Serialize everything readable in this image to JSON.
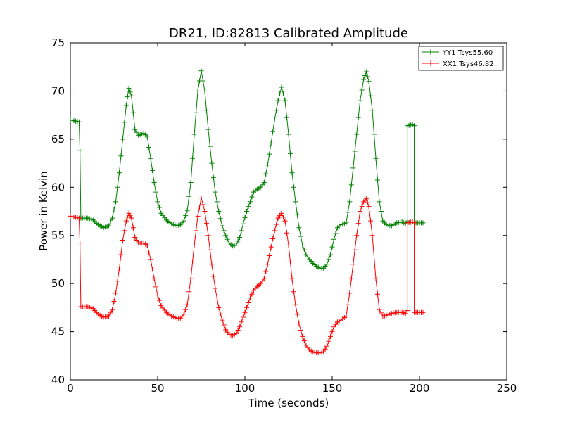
{
  "chart_data": {
    "type": "line",
    "title": "DR21, ID:82813 Calibrated Amplitude",
    "xlabel": "Time (seconds)",
    "ylabel": "Power in Kelvin",
    "xlim": [
      0,
      250
    ],
    "ylim": [
      40,
      75
    ],
    "xticks": [
      0,
      50,
      100,
      150,
      200,
      250
    ],
    "yticks": [
      40,
      45,
      50,
      55,
      60,
      65,
      70,
      75
    ],
    "grid": false,
    "legend_position": "top-right",
    "marker": "+",
    "series": [
      {
        "name": "YY1 Tsys55.60",
        "color": "#008000",
        "points": [
          [
            0,
            67.0
          ],
          [
            5,
            66.8
          ],
          [
            5.5,
            63.8
          ],
          [
            6,
            56.8
          ],
          [
            10,
            56.8
          ],
          [
            13,
            56.6
          ],
          [
            16,
            56.1
          ],
          [
            19,
            55.8
          ],
          [
            22,
            56.0
          ],
          [
            24,
            56.8
          ],
          [
            26,
            58.5
          ],
          [
            28,
            61.5
          ],
          [
            30,
            65.0
          ],
          [
            32,
            68.5
          ],
          [
            33.5,
            70.3
          ],
          [
            35,
            69.5
          ],
          [
            37,
            66.0
          ],
          [
            39,
            65.4
          ],
          [
            42,
            65.6
          ],
          [
            44,
            65.3
          ],
          [
            46,
            63.0
          ],
          [
            48,
            60.5
          ],
          [
            50,
            58.5
          ],
          [
            52,
            57.3
          ],
          [
            55,
            56.6
          ],
          [
            58,
            56.2
          ],
          [
            61,
            56.0
          ],
          [
            63,
            56.1
          ],
          [
            65,
            56.5
          ],
          [
            67,
            57.6
          ],
          [
            69,
            60.5
          ],
          [
            71,
            65.5
          ],
          [
            73,
            70.0
          ],
          [
            75,
            72.1
          ],
          [
            77,
            70.0
          ],
          [
            79,
            66.0
          ],
          [
            81,
            62.5
          ],
          [
            83,
            59.5
          ],
          [
            85,
            57.5
          ],
          [
            87,
            56.0
          ],
          [
            89,
            55.0
          ],
          [
            91,
            54.2
          ],
          [
            93,
            53.9
          ],
          [
            95,
            54.0
          ],
          [
            97,
            54.8
          ],
          [
            99,
            56.2
          ],
          [
            101,
            57.5
          ],
          [
            103,
            58.5
          ],
          [
            105,
            59.5
          ],
          [
            107,
            59.8
          ],
          [
            109,
            60.0
          ],
          [
            111,
            60.5
          ],
          [
            113,
            62.3
          ],
          [
            115,
            64.6
          ],
          [
            117,
            67.0
          ],
          [
            119,
            69.0
          ],
          [
            121,
            70.4
          ],
          [
            123,
            69.0
          ],
          [
            125,
            65.5
          ],
          [
            127,
            61.5
          ],
          [
            129,
            58.5
          ],
          [
            131,
            55.8
          ],
          [
            133,
            54.0
          ],
          [
            135,
            53.0
          ],
          [
            137,
            52.5
          ],
          [
            139,
            52.1
          ],
          [
            141,
            51.8
          ],
          [
            143,
            51.6
          ],
          [
            145,
            51.6
          ],
          [
            147,
            52.0
          ],
          [
            149,
            53.0
          ],
          [
            151,
            54.6
          ],
          [
            153,
            55.8
          ],
          [
            155,
            56.1
          ],
          [
            158,
            56.3
          ],
          [
            160,
            58.5
          ],
          [
            162,
            62.0
          ],
          [
            164,
            65.5
          ],
          [
            166,
            69.0
          ],
          [
            168,
            71.2
          ],
          [
            169.5,
            72.0
          ],
          [
            171,
            71.0
          ],
          [
            173,
            68.0
          ],
          [
            175,
            63.0
          ],
          [
            177,
            58.5
          ],
          [
            179,
            56.5
          ],
          [
            181,
            56.1
          ],
          [
            184,
            56.0
          ],
          [
            187,
            56.3
          ],
          [
            190,
            56.4
          ],
          [
            192,
            56.2
          ],
          [
            193,
            56.5
          ],
          [
            193,
            66.4
          ],
          [
            196,
            66.5
          ],
          [
            197,
            66.4
          ],
          [
            197,
            56.3
          ],
          [
            202,
            56.3
          ]
        ]
      },
      {
        "name": "XX1 Tsys46.82",
        "color": "#ff0000",
        "points": [
          [
            0,
            57.0
          ],
          [
            5,
            56.8
          ],
          [
            5.5,
            54.2
          ],
          [
            6,
            47.6
          ],
          [
            10,
            47.6
          ],
          [
            13,
            47.4
          ],
          [
            16,
            46.8
          ],
          [
            19,
            46.5
          ],
          [
            22,
            46.6
          ],
          [
            24,
            47.3
          ],
          [
            26,
            49.0
          ],
          [
            28,
            51.5
          ],
          [
            30,
            54.5
          ],
          [
            32,
            56.5
          ],
          [
            33.5,
            57.3
          ],
          [
            35,
            56.8
          ],
          [
            37,
            54.8
          ],
          [
            39,
            54.2
          ],
          [
            42,
            54.2
          ],
          [
            44,
            54.0
          ],
          [
            46,
            52.5
          ],
          [
            48,
            50.5
          ],
          [
            50,
            48.8
          ],
          [
            52,
            47.7
          ],
          [
            55,
            47.0
          ],
          [
            58,
            46.6
          ],
          [
            61,
            46.4
          ],
          [
            63,
            46.4
          ],
          [
            65,
            46.8
          ],
          [
            67,
            47.8
          ],
          [
            69,
            50.5
          ],
          [
            71,
            54.0
          ],
          [
            73,
            57.0
          ],
          [
            75,
            58.9
          ],
          [
            77,
            57.5
          ],
          [
            79,
            55.0
          ],
          [
            81,
            52.0
          ],
          [
            83,
            49.5
          ],
          [
            85,
            47.5
          ],
          [
            87,
            46.2
          ],
          [
            89,
            45.2
          ],
          [
            91,
            44.7
          ],
          [
            93,
            44.6
          ],
          [
            95,
            44.8
          ],
          [
            97,
            45.5
          ],
          [
            99,
            46.5
          ],
          [
            101,
            47.5
          ],
          [
            103,
            48.5
          ],
          [
            105,
            49.3
          ],
          [
            107,
            49.7
          ],
          [
            109,
            50.0
          ],
          [
            111,
            50.5
          ],
          [
            113,
            52.0
          ],
          [
            115,
            53.8
          ],
          [
            117,
            55.5
          ],
          [
            119,
            56.8
          ],
          [
            121,
            57.3
          ],
          [
            123,
            56.5
          ],
          [
            125,
            54.0
          ],
          [
            127,
            50.5
          ],
          [
            129,
            47.8
          ],
          [
            131,
            45.8
          ],
          [
            133,
            44.5
          ],
          [
            135,
            43.6
          ],
          [
            137,
            43.1
          ],
          [
            139,
            42.9
          ],
          [
            141,
            42.8
          ],
          [
            143,
            42.8
          ],
          [
            145,
            42.9
          ],
          [
            147,
            43.5
          ],
          [
            149,
            44.5
          ],
          [
            151,
            45.5
          ],
          [
            153,
            46.0
          ],
          [
            155,
            46.2
          ],
          [
            158,
            46.6
          ],
          [
            160,
            49.0
          ],
          [
            162,
            52.0
          ],
          [
            164,
            55.0
          ],
          [
            166,
            57.5
          ],
          [
            168,
            58.5
          ],
          [
            169.5,
            58.8
          ],
          [
            171,
            58.0
          ],
          [
            173,
            55.0
          ],
          [
            175,
            50.5
          ],
          [
            177,
            47.3
          ],
          [
            179,
            46.6
          ],
          [
            181,
            46.7
          ],
          [
            184,
            46.9
          ],
          [
            187,
            47.0
          ],
          [
            190,
            47.0
          ],
          [
            192,
            46.9
          ],
          [
            193,
            47.2
          ],
          [
            193,
            56.3
          ],
          [
            196,
            56.4
          ],
          [
            197,
            56.3
          ],
          [
            197,
            47.0
          ],
          [
            202,
            47.0
          ]
        ]
      }
    ]
  }
}
